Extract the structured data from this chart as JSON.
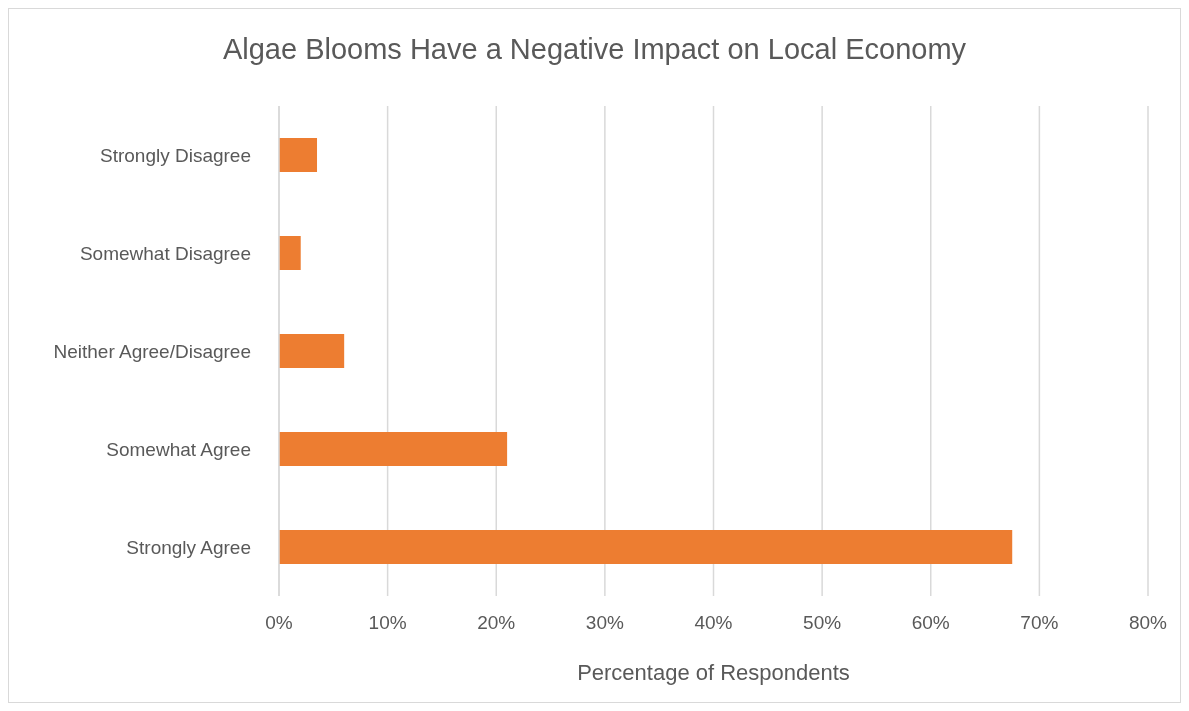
{
  "chart_data": {
    "type": "bar",
    "orientation": "horizontal",
    "title": "Algae Blooms Have a Negative Impact on Local Economy",
    "xlabel": "Percentage of Respondents",
    "categories": [
      "Strongly Disagree",
      "Somewhat Disagree",
      "Neither Agree/Disagree",
      "Somewhat Agree",
      "Strongly Agree"
    ],
    "values": [
      3.5,
      2,
      6,
      21,
      67.5
    ],
    "color": "#ed7d31",
    "xlim": [
      0,
      80
    ],
    "xticks": [
      {
        "value": 0,
        "label": "0%"
      },
      {
        "value": 10,
        "label": "10%"
      },
      {
        "value": 20,
        "label": "20%"
      },
      {
        "value": 30,
        "label": "30%"
      },
      {
        "value": 40,
        "label": "40%"
      },
      {
        "value": 50,
        "label": "50%"
      },
      {
        "value": 60,
        "label": "60%"
      },
      {
        "value": 70,
        "label": "70%"
      },
      {
        "value": 80,
        "label": "80%"
      }
    ],
    "grid": "x",
    "legend": false
  }
}
